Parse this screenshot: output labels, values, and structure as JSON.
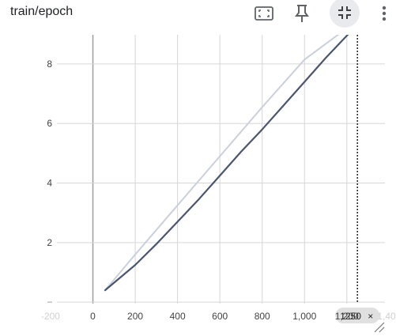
{
  "header": {
    "title": "train/epoch",
    "tools": [
      {
        "name": "fit-domain-icon"
      },
      {
        "name": "pin-icon"
      },
      {
        "name": "collapse-icon"
      },
      {
        "name": "more-vert-icon"
      }
    ]
  },
  "hover": {
    "x_label": "1250",
    "close_glyph": "×"
  },
  "colors": {
    "smoothed": "#4a5670",
    "raw": "#c9cfdb",
    "grid": "#d6d6d6",
    "zero_axis": "#9e9e9e",
    "cursor": "#212121"
  },
  "chart_data": {
    "type": "line",
    "title": "train/epoch",
    "xlabel": "",
    "ylabel": "",
    "xlim": [
      -170,
      1380
    ],
    "ylim": [
      -0.05,
      8.98
    ],
    "xticks": [
      -200,
      0,
      200,
      400,
      600,
      800,
      1000,
      1200,
      1400
    ],
    "xtick_labels": [
      "-200",
      "0",
      "200",
      "400",
      "600",
      "800",
      "1,000",
      "1,200",
      "1,400"
    ],
    "yticks": [
      0,
      2,
      4,
      6,
      8
    ],
    "ytick_labels": [
      "",
      "2",
      "4",
      "6",
      "8"
    ],
    "grid": true,
    "hover_x": 1250,
    "series": [
      {
        "role": "raw",
        "x": [
          58,
          200,
          400,
          600,
          800,
          1000,
          1200
        ],
        "y": [
          0.4,
          1.6,
          3.25,
          4.9,
          6.55,
          8.15,
          9.2
        ]
      },
      {
        "role": "smoothed",
        "x": [
          58,
          100,
          200,
          300,
          400,
          500,
          600,
          700,
          800,
          900,
          1000,
          1100,
          1200,
          1255
        ],
        "y": [
          0.4,
          0.65,
          1.25,
          1.95,
          2.7,
          3.45,
          4.25,
          5.05,
          5.8,
          6.6,
          7.4,
          8.2,
          8.95,
          9.35
        ]
      }
    ]
  }
}
